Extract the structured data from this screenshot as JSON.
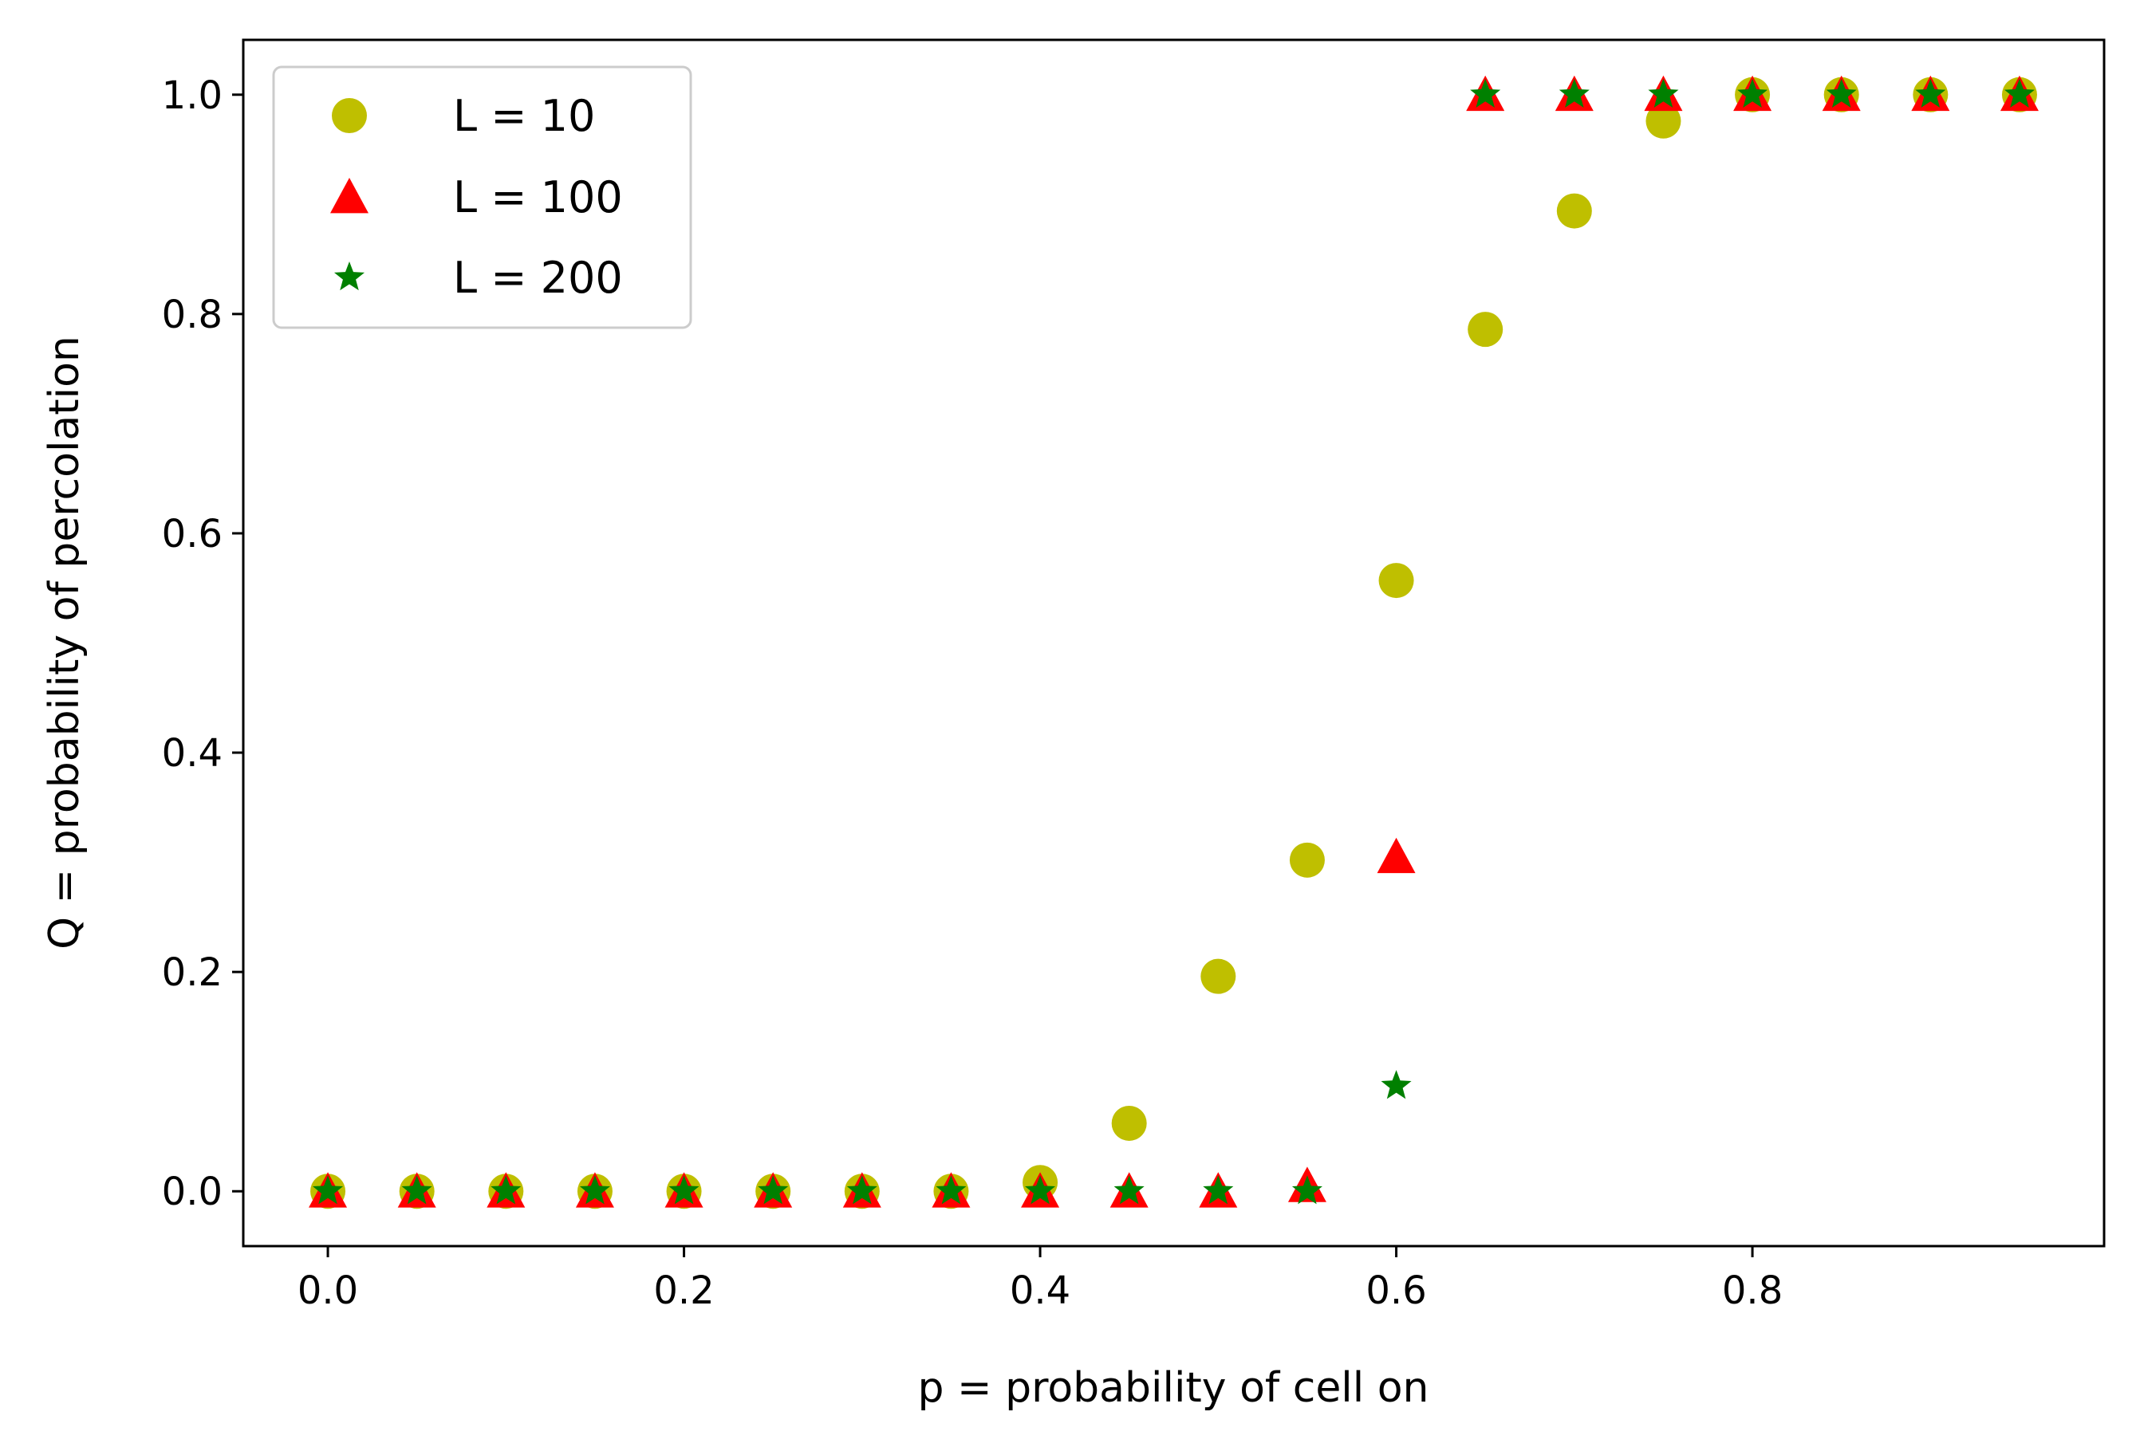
{
  "chart_data": {
    "type": "scatter",
    "title": "",
    "xlabel": "p = probability of cell on",
    "ylabel": "Q = probability of percolation",
    "xlim": [
      -0.0475,
      0.9975
    ],
    "ylim": [
      -0.05,
      1.05
    ],
    "x_ticks": [
      0.0,
      0.2,
      0.4,
      0.6,
      0.8
    ],
    "x_tick_labels": [
      "0.0",
      "0.2",
      "0.4",
      "0.6",
      "0.8"
    ],
    "y_ticks": [
      0.0,
      0.2,
      0.4,
      0.6,
      0.8,
      1.0
    ],
    "y_tick_labels": [
      "0.0",
      "0.2",
      "0.4",
      "0.6",
      "0.8",
      "1.0"
    ],
    "grid": false,
    "legend_position": "upper-left",
    "x": [
      0.0,
      0.05,
      0.1,
      0.15,
      0.2,
      0.25,
      0.3,
      0.35,
      0.4,
      0.45,
      0.5,
      0.55,
      0.6,
      0.65,
      0.7,
      0.75,
      0.8,
      0.85,
      0.9,
      0.95
    ],
    "series": [
      {
        "name": "L = 10",
        "marker": "circle",
        "color": "#bfbf00",
        "values": [
          0.0,
          0.0,
          0.0,
          0.0,
          0.0,
          0.0,
          0.0,
          0.0,
          0.008,
          0.062,
          0.196,
          0.302,
          0.557,
          0.786,
          0.894,
          0.976,
          1.0,
          1.0,
          1.0,
          1.0
        ]
      },
      {
        "name": "L = 100",
        "marker": "triangle",
        "color": "#ff0000",
        "values": [
          0.0,
          0.0,
          0.0,
          0.0,
          0.0,
          0.0,
          0.0,
          0.0,
          0.0,
          0.0,
          0.0,
          0.005,
          0.305,
          1.0,
          1.0,
          1.0,
          1.0,
          1.0,
          1.0,
          1.0
        ]
      },
      {
        "name": "L = 200",
        "marker": "star",
        "color": "#008000",
        "values": [
          0.0,
          0.0,
          0.0,
          0.0,
          0.0,
          0.0,
          0.0,
          0.0,
          0.0,
          0.0,
          0.0,
          0.0,
          0.096,
          1.0,
          1.0,
          1.0,
          1.0,
          1.0,
          1.0,
          1.0
        ]
      }
    ]
  }
}
